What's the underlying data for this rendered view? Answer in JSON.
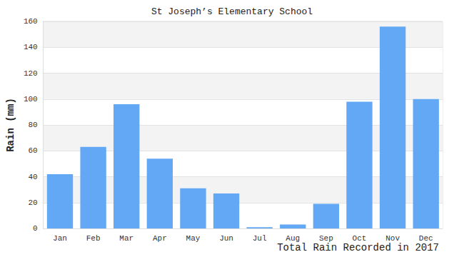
{
  "chart_data": {
    "type": "bar",
    "title": "St Joseph’s Elementary School",
    "ylabel": "Rain (mm)",
    "xlabel": "Total Rain Recorded in 2017",
    "categories": [
      "Jan",
      "Feb",
      "Mar",
      "Apr",
      "May",
      "Jun",
      "Jul",
      "Aug",
      "Sep",
      "Oct",
      "Nov",
      "Dec"
    ],
    "values": [
      42,
      63,
      96,
      54,
      31,
      27,
      1,
      3,
      19,
      98,
      156,
      100
    ],
    "color": "#62a8f4",
    "ylim": [
      0,
      160
    ],
    "yticks": [
      0,
      20,
      40,
      60,
      80,
      100,
      120,
      140,
      160
    ],
    "grid": true
  }
}
